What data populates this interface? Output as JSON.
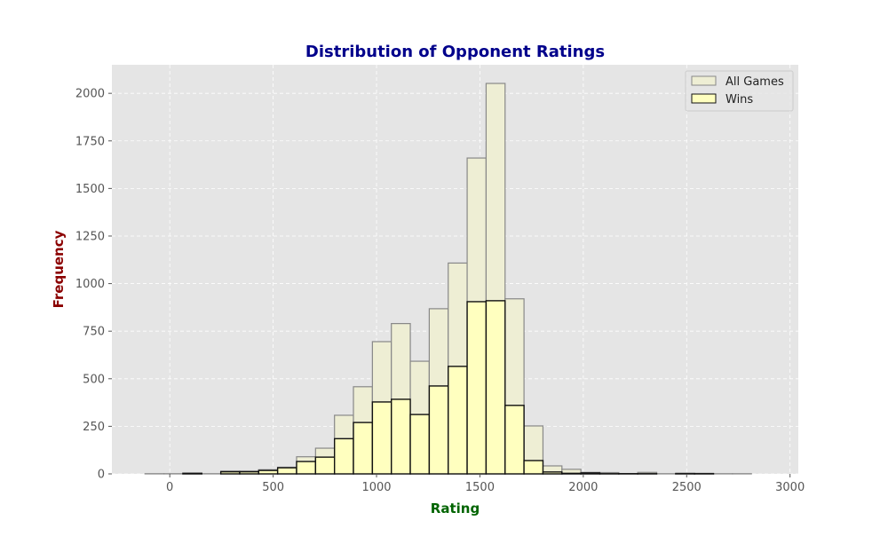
{
  "chart_data": {
    "type": "bar",
    "title": "Distribution of Opponent Ratings",
    "xlabel": "Rating",
    "ylabel": "Frequency",
    "xlim": [
      -280,
      3040
    ],
    "ylim": [
      0,
      2150
    ],
    "x_ticks": [
      0,
      500,
      1000,
      1500,
      2000,
      2500,
      3000
    ],
    "y_ticks": [
      0,
      250,
      500,
      750,
      1000,
      1250,
      1500,
      1750,
      2000
    ],
    "grid": true,
    "legend_position": "top-right",
    "bin_edges": [
      -120.0,
      -28.3,
      63.3,
      155.0,
      246.7,
      338.3,
      430.0,
      521.7,
      613.3,
      705.0,
      796.7,
      888.3,
      980.0,
      1071.7,
      1163.3,
      1255.0,
      1346.7,
      1438.3,
      1530.0,
      1621.7,
      1713.3,
      1805.0,
      1896.7,
      1988.3,
      2080.0,
      2171.7,
      2263.3,
      2355.0,
      2446.7,
      2538.3,
      2630.0,
      2721.7,
      2813.3,
      2905.0
    ],
    "series": [
      {
        "name": "All Games",
        "color": "#eeeed4",
        "edge_color": "#888888",
        "values": [
          1,
          1,
          4,
          1,
          15,
          15,
          22,
          35,
          90,
          135,
          308,
          458,
          695,
          790,
          592,
          868,
          1108,
          1660,
          2052,
          920,
          252,
          42,
          24,
          8,
          7,
          2,
          8,
          1,
          4,
          3,
          1,
          1,
          0
        ]
      },
      {
        "name": "Wins",
        "color": "#ffffbf",
        "edge_color": "#111111",
        "values": [
          0,
          0,
          3,
          0,
          11,
          11,
          18,
          32,
          65,
          88,
          185,
          270,
          378,
          392,
          312,
          462,
          565,
          905,
          910,
          360,
          70,
          10,
          3,
          5,
          1,
          1,
          1,
          0,
          1,
          1,
          0,
          0,
          0
        ]
      }
    ],
    "colors": {
      "title": "#00008b",
      "xlabel": "#006400",
      "ylabel": "#8b0000",
      "axes_bg": "#e5e5e5",
      "grid": "#ffffff",
      "tick_text": "#555555"
    }
  }
}
